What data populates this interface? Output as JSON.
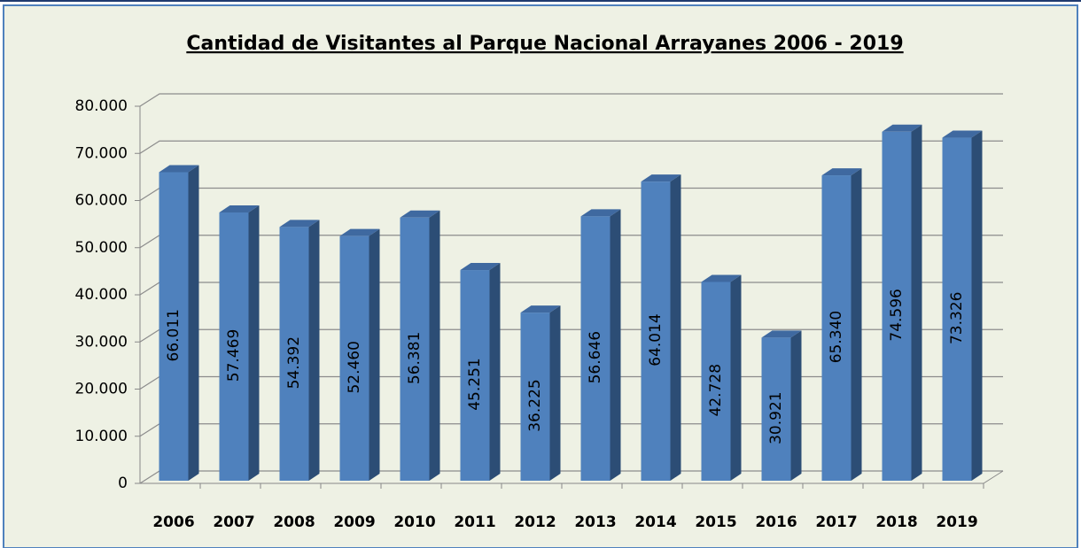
{
  "chart_data": {
    "type": "bar3d",
    "title": "Cantidad de Visitantes al Parque Nacional Arrayanes  2006 - 2019",
    "categories": [
      "2006",
      "2007",
      "2008",
      "2009",
      "2010",
      "2011",
      "2012",
      "2013",
      "2014",
      "2015",
      "2016",
      "2017",
      "2018",
      "2019"
    ],
    "values": [
      66011,
      57469,
      54392,
      52460,
      56381,
      45251,
      36225,
      56646,
      64014,
      42728,
      30921,
      65340,
      74596,
      73326
    ],
    "value_labels": [
      "66.011",
      "57.469",
      "54.392",
      "52.460",
      "56.381",
      "45.251",
      "36.225",
      "56.646",
      "64.014",
      "42.728",
      "30.921",
      "65.340",
      "74.596",
      "73.326"
    ],
    "color": "#4f81bd",
    "ylim": [
      0,
      80000
    ],
    "yticks": [
      0,
      {
        "value": 10000,
        "label": "10.000"
      },
      {
        "value": 20000,
        "label": "20.000"
      },
      {
        "value": 30000,
        "label": "30.000"
      },
      {
        "value": 40000,
        "label": "40.000"
      },
      {
        "value": 50000,
        "label": "50.000"
      },
      {
        "value": 60000,
        "label": "60.000"
      },
      {
        "value": 70000,
        "label": "70.000"
      },
      {
        "value": 80000,
        "label": "80.000"
      }
    ],
    "grid": true
  }
}
